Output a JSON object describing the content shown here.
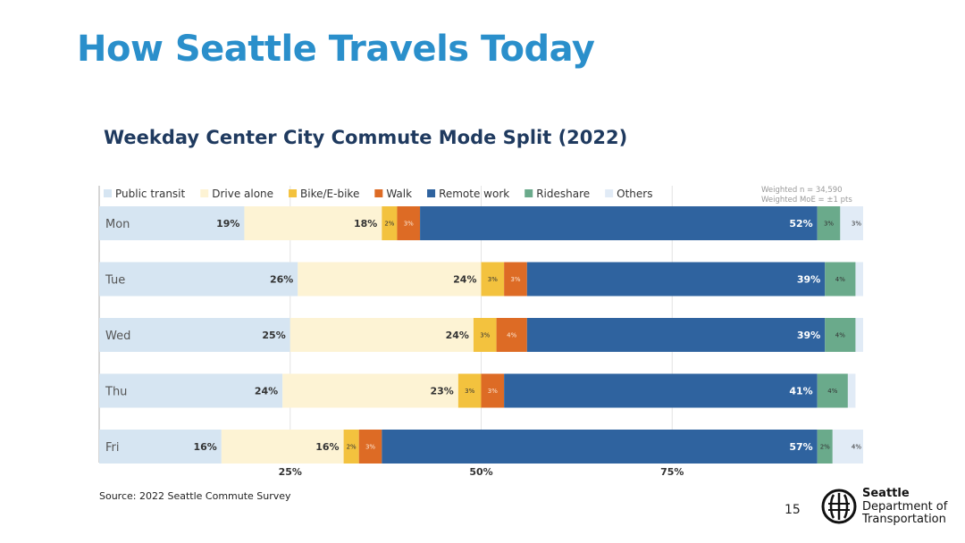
{
  "slide": {
    "title": "How Seattle Travels Today",
    "source": "Source: 2022 Seattle Commute Survey",
    "page_number": "15"
  },
  "logo": {
    "line1": "Seattle",
    "line2": "Department of",
    "line3": "Transportation"
  },
  "chart_notes": {
    "weighted_n": "Weighted n = 34,590",
    "weighted_moe": "Weighted MoE = ±1 pts"
  },
  "chart_data": {
    "type": "bar",
    "orientation": "horizontal",
    "stacked": true,
    "title": "Weekday Center City Commute Mode Split (2022)",
    "categories": [
      "Mon",
      "Tue",
      "Wed",
      "Thu",
      "Fri"
    ],
    "series": [
      {
        "name": "Public transit",
        "color": "#d6e5f2",
        "values": [
          19,
          26,
          25,
          24,
          16
        ],
        "labels": [
          "19%",
          "26%",
          "25%",
          "24%",
          "16%"
        ]
      },
      {
        "name": "Drive alone",
        "color": "#fdf3d4",
        "values": [
          18,
          24,
          24,
          23,
          16
        ],
        "labels": [
          "18%",
          "24%",
          "24%",
          "23%",
          "16%"
        ]
      },
      {
        "name": "Bike/E-bike",
        "color": "#f3c23e",
        "values": [
          2,
          3,
          3,
          3,
          2
        ],
        "labels": [
          "2%",
          "3%",
          "3%",
          "3%",
          "2%"
        ]
      },
      {
        "name": "Walk",
        "color": "#dd6b25",
        "values": [
          3,
          3,
          4,
          3,
          3
        ],
        "labels": [
          "3%",
          "3%",
          "4%",
          "3%",
          "3%"
        ]
      },
      {
        "name": "Remote work",
        "color": "#2f639f",
        "values": [
          52,
          39,
          39,
          41,
          57
        ],
        "labels": [
          "52%",
          "39%",
          "39%",
          "41%",
          "57%"
        ]
      },
      {
        "name": "Rideshare",
        "color": "#6aaa8b",
        "values": [
          3,
          4,
          4,
          4,
          2
        ],
        "labels": [
          "3%",
          "4%",
          "4%",
          "4%",
          "2%"
        ]
      },
      {
        "name": "Others",
        "color": "#e1ebf6",
        "values": [
          3,
          1,
          1,
          1,
          4
        ],
        "labels": [
          "3%",
          "",
          "",
          "",
          "4%"
        ]
      }
    ],
    "xlim": [
      0,
      100
    ],
    "xticks": [
      25,
      50,
      75
    ],
    "xtick_labels": [
      "25%",
      "50%",
      "75%"
    ],
    "legend_position": "top"
  }
}
